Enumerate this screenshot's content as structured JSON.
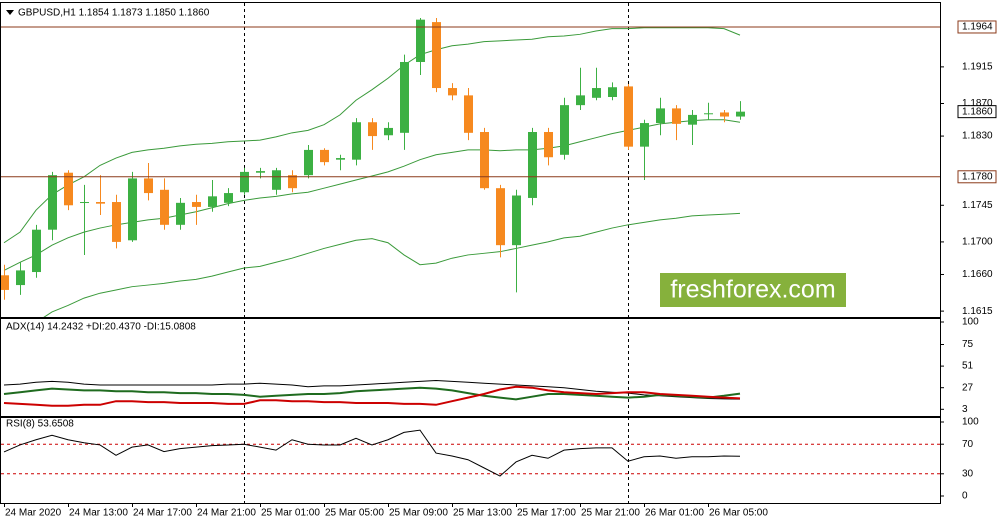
{
  "chart_data": [
    {
      "type": "candlestick",
      "title": "GBPUSD,H1  1.1854 1.1873 1.1850 1.1860",
      "categories": [
        "24 Mar 2020",
        null,
        null,
        null,
        "24 Mar 13:00",
        null,
        null,
        null,
        "24 Mar 17:00",
        null,
        null,
        null,
        "24 Mar 21:00",
        null,
        null,
        null,
        "25 Mar 01:00",
        null,
        null,
        null,
        "25 Mar 05:00",
        null,
        null,
        null,
        "25 Mar 09:00",
        null,
        null,
        null,
        "25 Mar 13:00",
        null,
        null,
        null,
        "25 Mar 17:00",
        null,
        null,
        null,
        "25 Mar 21:00",
        null,
        null,
        null,
        "26 Mar 01:00",
        null,
        null,
        null,
        "26 Mar 05:00",
        null,
        null
      ],
      "open": [
        1.1659,
        1.1647,
        1.1663,
        1.1715,
        1.1785,
        1.1748,
        1.1749,
        1.1749,
        1.1702,
        1.1778,
        1.1764,
        1.1721,
        1.1749,
        1.1743,
        1.1748,
        1.1761,
        1.1785,
        1.1764,
        1.1782,
        1.1782,
        1.1813,
        1.1801,
        1.1801,
        1.1847,
        1.1831,
        1.1834,
        1.1921,
        1.197,
        1.1889,
        1.188,
        1.1835,
        1.1766,
        1.1696,
        1.1754,
        1.1835,
        1.1807,
        1.1868,
        1.1877,
        1.1878,
        1.1891,
        1.1817,
        1.1846,
        1.1864,
        1.1844,
        1.1857,
        1.1859,
        1.1854
      ],
      "high": [
        1.1672,
        1.1675,
        1.1721,
        1.1786,
        1.1788,
        1.177,
        1.1782,
        1.1758,
        1.1786,
        1.1797,
        1.1778,
        1.1754,
        1.1758,
        1.1776,
        1.1766,
        1.1791,
        1.1791,
        1.1791,
        1.1788,
        1.1819,
        1.1815,
        1.1807,
        1.1852,
        1.1852,
        1.1847,
        1.193,
        1.1975,
        1.1975,
        1.1895,
        1.1889,
        1.184,
        1.177,
        1.1764,
        1.184,
        1.184,
        1.1877,
        1.1914,
        1.1914,
        1.1896,
        1.1894,
        1.185,
        1.1877,
        1.1868,
        1.1862,
        1.1871,
        1.1862,
        1.1873
      ],
      "low": [
        1.1629,
        1.1635,
        1.1656,
        1.1702,
        1.1739,
        1.1684,
        1.1733,
        1.1692,
        1.17,
        1.1751,
        1.1715,
        1.1715,
        1.1721,
        1.1737,
        1.1744,
        1.1758,
        1.1778,
        1.1758,
        1.1761,
        1.1778,
        1.1794,
        1.1788,
        1.1794,
        1.1813,
        1.1825,
        1.1813,
        1.1905,
        1.1884,
        1.1874,
        1.1825,
        1.1764,
        1.1681,
        1.1638,
        1.1745,
        1.1794,
        1.1801,
        1.1862,
        1.1874,
        1.1874,
        1.1813,
        1.1776,
        1.1831,
        1.1825,
        1.1819,
        1.185,
        1.1847,
        1.185
      ],
      "close": [
        1.1641,
        1.1665,
        1.1715,
        1.1782,
        1.1745,
        1.1749,
        1.1747,
        1.17,
        1.1778,
        1.176,
        1.1721,
        1.1748,
        1.1743,
        1.1756,
        1.176,
        1.1786,
        1.1787,
        1.1788,
        1.1766,
        1.1813,
        1.1798,
        1.1803,
        1.1847,
        1.183,
        1.184,
        1.1921,
        1.1973,
        1.1889,
        1.188,
        1.1834,
        1.1766,
        1.1696,
        1.1757,
        1.1835,
        1.1804,
        1.1868,
        1.188,
        1.1889,
        1.189,
        1.1817,
        1.1846,
        1.1864,
        1.1845,
        1.1856,
        1.1858,
        1.1854,
        1.186
      ],
      "up_color": "#3cb043",
      "down_color": "#f6891f",
      "bands": {
        "color": "#3a9a3a",
        "upper": [
          1.1699,
          1.1712,
          1.1739,
          1.1758,
          1.177,
          1.178,
          1.1794,
          1.1803,
          1.181,
          1.1813,
          1.1815,
          1.1818,
          1.182,
          1.1821,
          1.1823,
          1.1824,
          1.1825,
          1.1829,
          1.1834,
          1.1837,
          1.1844,
          1.1856,
          1.1874,
          1.1887,
          1.1901,
          1.1917,
          1.193,
          1.1936,
          1.1941,
          1.1943,
          1.1946,
          1.1947,
          1.1948,
          1.1949,
          1.1952,
          1.1953,
          1.1955,
          1.1959,
          1.1962,
          1.1962,
          1.1963,
          1.1963,
          1.1963,
          1.1963,
          1.1963,
          1.1962,
          1.1954
        ],
        "middle": [
          1.1665,
          1.1675,
          1.1684,
          1.1696,
          1.1705,
          1.1712,
          1.1717,
          1.1721,
          1.1724,
          1.1727,
          1.1729,
          1.1733,
          1.1737,
          1.1742,
          1.1747,
          1.1751,
          1.1754,
          1.1756,
          1.1759,
          1.1761,
          1.1766,
          1.1771,
          1.1776,
          1.1781,
          1.1786,
          1.1793,
          1.1801,
          1.1807,
          1.181,
          1.1813,
          1.1813,
          1.1812,
          1.1813,
          1.1813,
          1.1815,
          1.1818,
          1.1823,
          1.1828,
          1.1833,
          1.1837,
          1.1841,
          1.1845,
          1.1847,
          1.1849,
          1.185,
          1.185,
          1.1847
        ],
        "lower": [
          1.1579,
          1.1592,
          1.1601,
          1.1614,
          1.1622,
          1.1631,
          1.1637,
          1.1641,
          1.1645,
          1.1647,
          1.1649,
          1.1652,
          1.1654,
          1.1658,
          1.1663,
          1.1668,
          1.167,
          1.1675,
          1.168,
          1.1686,
          1.1692,
          1.1697,
          1.1702,
          1.1704,
          1.1699,
          1.1684,
          1.1672,
          1.1674,
          1.168,
          1.1684,
          1.1686,
          1.1688,
          1.1692,
          1.1696,
          1.17,
          1.1705,
          1.1707,
          1.1712,
          1.1717,
          1.1721,
          1.1724,
          1.1727,
          1.1729,
          1.1732,
          1.1733,
          1.1734,
          1.1735
        ]
      },
      "ylim": [
        1.1609,
        1.1991
      ],
      "yticks": [
        1.1615,
        {
          "value": 1.166,
          "label": "1.1660"
        },
        {
          "value": 1.17,
          "label": "1.1700"
        },
        1.1745,
        {
          "value": 1.183,
          "label": "1.1830"
        },
        {
          "value": 1.187,
          "label": "1.1870"
        },
        1.1915
      ],
      "levels": [
        1.1964,
        {
          "value": 1.178,
          "label": "1.1780"
        }
      ],
      "level_color": "#8b3a1a",
      "last_price": {
        "value": 1.186,
        "label": "1.1860"
      }
    },
    {
      "type": "line",
      "title": "ADX(14) 14.2432 +DI:20.4370 -DI:15.0808",
      "series": [
        {
          "color": "#000000",
          "values": [
            30,
            31,
            33,
            34,
            33,
            31,
            30,
            30,
            30,
            30,
            30,
            30,
            30,
            30,
            31,
            31,
            32,
            31,
            30,
            28,
            29,
            29,
            30,
            31,
            32,
            33,
            34,
            35,
            34,
            33,
            32,
            31,
            30,
            29,
            28,
            27,
            25,
            23,
            22,
            21,
            19,
            18,
            17,
            16,
            15,
            14.6,
            14.2432
          ]
        },
        {
          "color": "#1f6b1f",
          "values": [
            20,
            22,
            24,
            26,
            25,
            24,
            24,
            23,
            23,
            22,
            22,
            21,
            21,
            20,
            20,
            19,
            17,
            18,
            19,
            20,
            20,
            21,
            23,
            24,
            25,
            26,
            27,
            26,
            24,
            21,
            18,
            16,
            14,
            17,
            20,
            20,
            19,
            18,
            17,
            16,
            17,
            19,
            18,
            17,
            16,
            18,
            20.437
          ]
        },
        {
          "color": "#cc0000",
          "values": [
            10,
            9,
            8,
            7,
            7,
            8,
            8,
            12,
            12,
            11,
            11,
            10,
            10,
            10,
            9,
            9,
            13,
            13,
            12,
            12,
            11,
            11,
            10,
            10,
            10,
            9,
            9,
            8,
            12,
            16,
            20,
            25,
            28,
            27,
            24,
            22,
            21,
            20,
            21,
            22,
            22,
            20,
            19,
            18,
            17,
            16,
            15.0808
          ]
        }
      ],
      "ylim": [
        0,
        100
      ],
      "yticks": [
        100,
        75,
        51,
        27,
        3
      ]
    },
    {
      "type": "line",
      "title": "RSI(8) 53.6508",
      "series": [
        {
          "color": "#000000",
          "values": [
            59.5,
            69,
            76,
            82,
            76,
            72,
            69,
            55,
            66,
            69,
            60,
            64,
            66,
            68,
            69,
            70,
            66,
            62,
            76,
            70,
            69,
            69,
            78,
            69,
            76,
            86,
            89,
            58,
            54,
            49,
            38,
            27,
            46,
            55,
            51,
            62,
            64,
            65,
            65,
            47,
            53,
            54,
            51,
            53,
            53,
            54,
            53.6508
          ]
        }
      ],
      "ylim": [
        0,
        100
      ],
      "yticks": [
        100,
        70,
        30,
        0
      ],
      "levels": [
        70,
        30
      ],
      "level_color": "#cc0000"
    }
  ],
  "watermark": "freshforex.com"
}
